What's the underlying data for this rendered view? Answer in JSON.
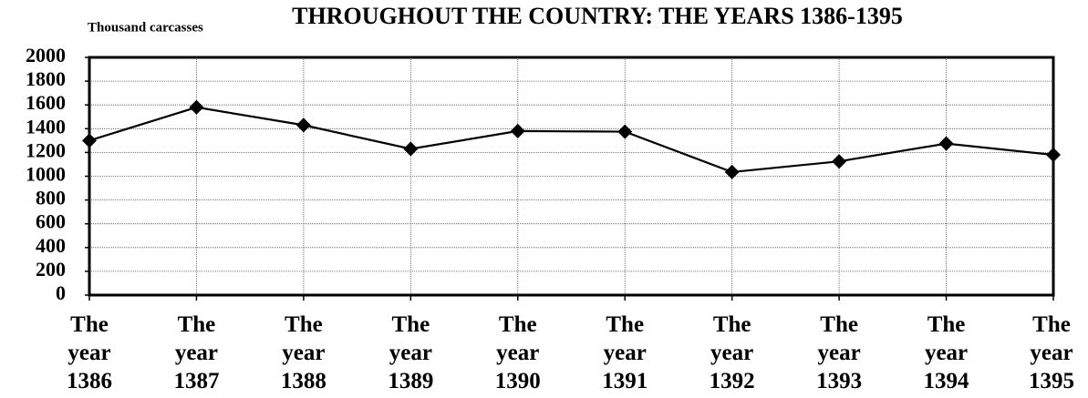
{
  "chart_data": {
    "type": "line",
    "title": "THROUGHOUT THE COUNTRY: THE YEARS 1386-1395",
    "y_label": "Thousand carcasses",
    "categories": [
      "The year 1386",
      "The year 1387",
      "The year 1388",
      "The year 1389",
      "The year 1390",
      "The year 1391",
      "The year 1392",
      "The year 1393",
      "The year 1394",
      "The year 1395"
    ],
    "series": [
      {
        "name": "Thousand carcasses",
        "color": "#000000",
        "values": [
          1300,
          1580,
          1430,
          1230,
          1380,
          1375,
          1035,
          1125,
          1275,
          1180
        ]
      }
    ],
    "ylim": [
      0,
      2000
    ],
    "yticks": [
      0,
      200,
      400,
      600,
      800,
      1000,
      1200,
      1400,
      1600,
      1800,
      2000
    ],
    "grid": true
  }
}
